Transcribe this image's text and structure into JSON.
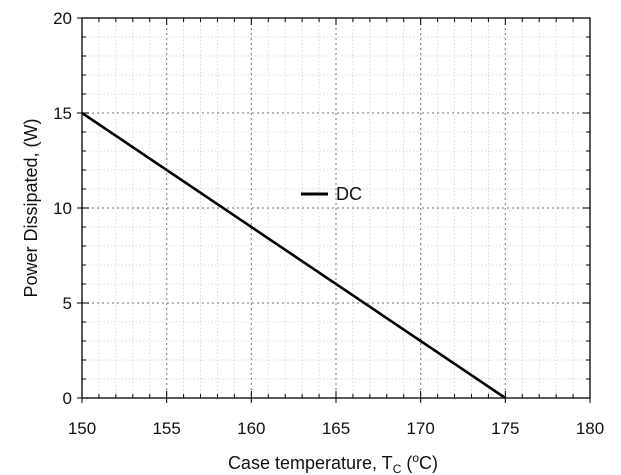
{
  "chart_data": {
    "type": "line",
    "xlabel": {
      "main": "Case temperature, T",
      "sub": "C",
      "paren_open": " (",
      "sup": "o",
      "unit": "C)"
    },
    "ylabel": "Power Dissipated, (W)",
    "xlim": [
      150,
      180
    ],
    "ylim": [
      0,
      20
    ],
    "x_ticks": [
      150,
      155,
      160,
      165,
      170,
      175,
      180
    ],
    "y_ticks": [
      0,
      5,
      10,
      15,
      20
    ],
    "x_minor_step": 1,
    "y_minor_step": 1,
    "grid": true,
    "legend_position": "center",
    "series": [
      {
        "name": "DC",
        "x": [
          150,
          175
        ],
        "y": [
          15,
          0
        ],
        "color": "#000000"
      }
    ]
  }
}
